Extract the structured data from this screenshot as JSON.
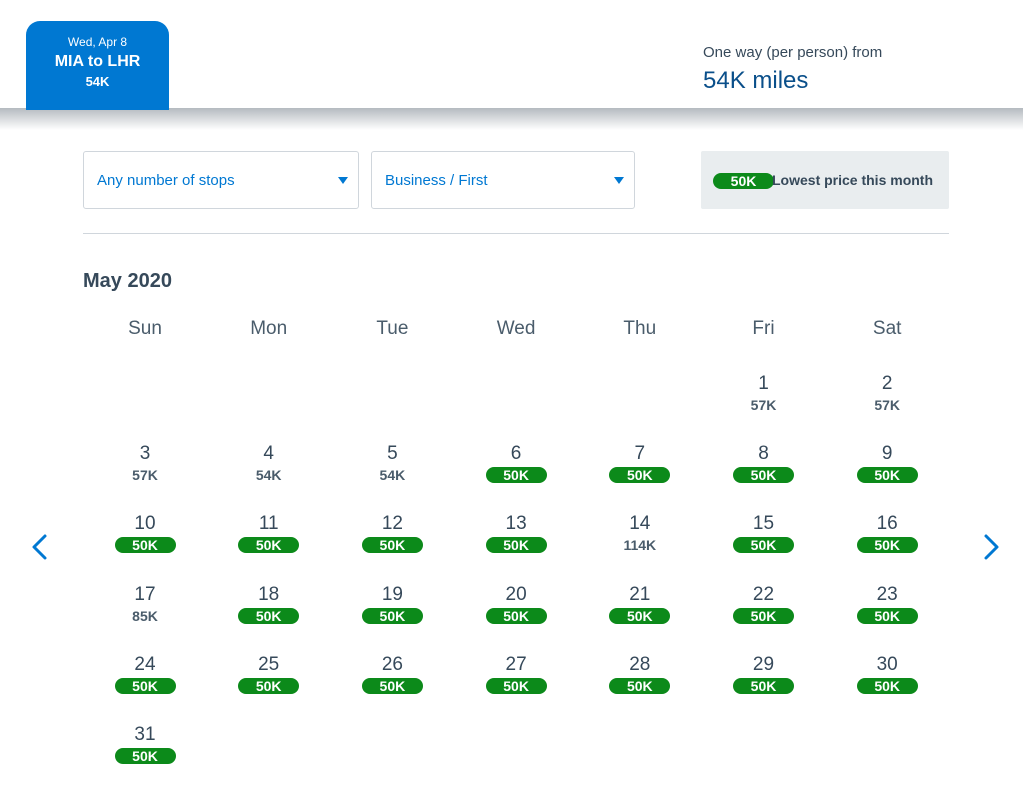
{
  "trip": {
    "date": "Wed, Apr 8",
    "route": "MIA to LHR",
    "miles": "54K"
  },
  "fare": {
    "label": "One way (per person) from",
    "value": "54K miles"
  },
  "filters": {
    "stops": "Any number of stops",
    "cabin": "Business / First"
  },
  "legend": {
    "badge": "50K",
    "text": "Lowest price this month",
    "color": "#0c8a1a"
  },
  "calendar": {
    "month": "May 2020",
    "weekdays": [
      "Sun",
      "Mon",
      "Tue",
      "Wed",
      "Thu",
      "Fri",
      "Sat"
    ],
    "first_weekday_index": 5,
    "lowest_price": "50K",
    "days": [
      {
        "day": "1",
        "price": "57K"
      },
      {
        "day": "2",
        "price": "57K"
      },
      {
        "day": "3",
        "price": "57K"
      },
      {
        "day": "4",
        "price": "54K"
      },
      {
        "day": "5",
        "price": "54K"
      },
      {
        "day": "6",
        "price": "50K"
      },
      {
        "day": "7",
        "price": "50K"
      },
      {
        "day": "8",
        "price": "50K"
      },
      {
        "day": "9",
        "price": "50K"
      },
      {
        "day": "10",
        "price": "50K"
      },
      {
        "day": "11",
        "price": "50K"
      },
      {
        "day": "12",
        "price": "50K"
      },
      {
        "day": "13",
        "price": "50K"
      },
      {
        "day": "14",
        "price": "114K"
      },
      {
        "day": "15",
        "price": "50K"
      },
      {
        "day": "16",
        "price": "50K"
      },
      {
        "day": "17",
        "price": "85K"
      },
      {
        "day": "18",
        "price": "50K"
      },
      {
        "day": "19",
        "price": "50K"
      },
      {
        "day": "20",
        "price": "50K"
      },
      {
        "day": "21",
        "price": "50K"
      },
      {
        "day": "22",
        "price": "50K"
      },
      {
        "day": "23",
        "price": "50K"
      },
      {
        "day": "24",
        "price": "50K"
      },
      {
        "day": "25",
        "price": "50K"
      },
      {
        "day": "26",
        "price": "50K"
      },
      {
        "day": "27",
        "price": "50K"
      },
      {
        "day": "28",
        "price": "50K"
      },
      {
        "day": "29",
        "price": "50K"
      },
      {
        "day": "30",
        "price": "50K"
      },
      {
        "day": "31",
        "price": "50K"
      }
    ]
  },
  "nav": {
    "prev_icon": "chevron-left-icon",
    "next_icon": "chevron-right-icon",
    "accent": "#0078d2"
  }
}
